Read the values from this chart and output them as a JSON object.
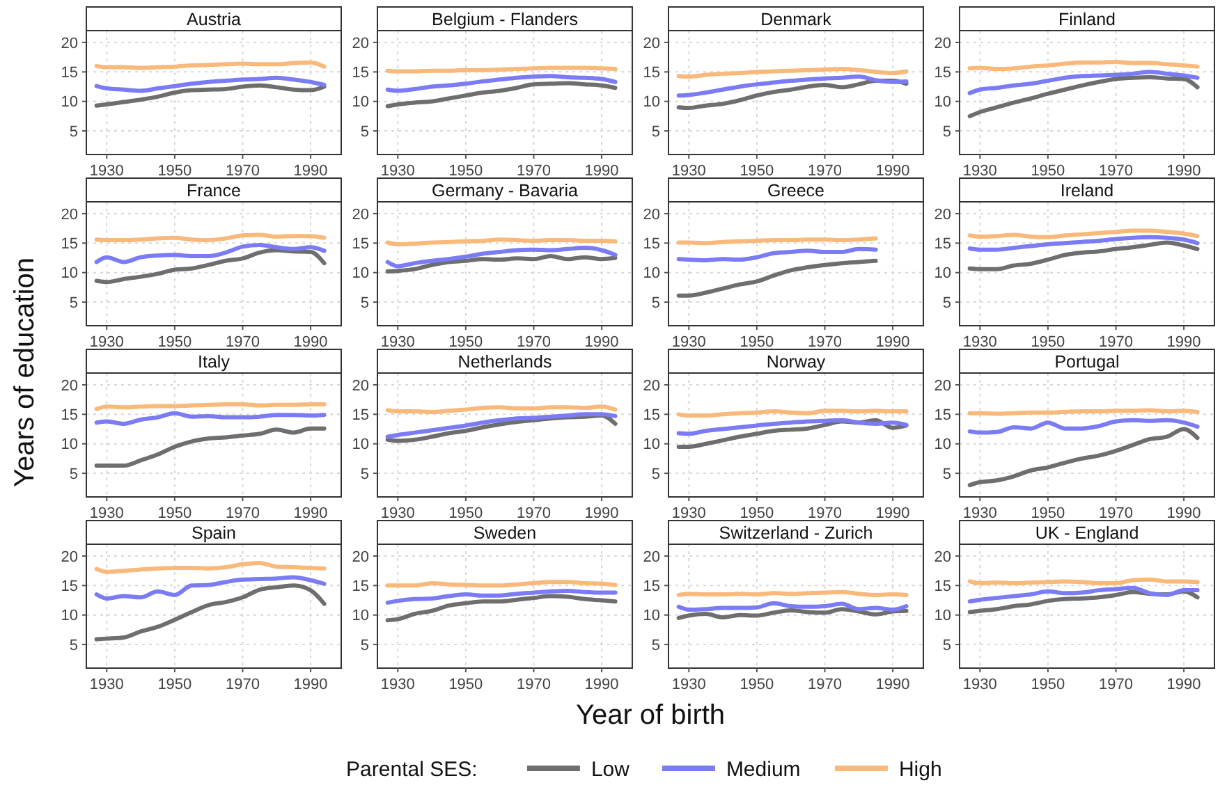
{
  "chart_data": [
    {
      "type": "line",
      "title": "Austria",
      "grid": true,
      "xlim": [
        1924,
        1999
      ],
      "ylim": [
        1,
        22
      ],
      "xticks": [
        1930,
        1950,
        1970,
        1990
      ],
      "yticks": [
        5,
        10,
        15,
        20
      ],
      "x": [
        1927,
        1930,
        1935,
        1940,
        1945,
        1950,
        1955,
        1960,
        1965,
        1970,
        1975,
        1980,
        1985,
        1990,
        1994
      ],
      "series": [
        {
          "color": "#6e6e6e",
          "values": [
            9.3,
            9.5,
            9.9,
            10.3,
            10.8,
            11.5,
            11.9,
            12.0,
            12.1,
            12.5,
            12.7,
            12.4,
            12.0,
            11.9,
            12.5
          ]
        },
        {
          "color": "#7b7bf5",
          "values": [
            12.6,
            12.2,
            12.0,
            11.8,
            12.2,
            12.6,
            13.0,
            13.3,
            13.5,
            13.7,
            13.8,
            14.0,
            13.7,
            13.3,
            12.8
          ]
        },
        {
          "color": "#f8b97a",
          "values": [
            16.0,
            15.8,
            15.8,
            15.7,
            15.8,
            15.9,
            16.1,
            16.2,
            16.3,
            16.4,
            16.3,
            16.3,
            16.5,
            16.6,
            15.9
          ]
        }
      ]
    },
    {
      "type": "line",
      "title": "Belgium - Flanders",
      "grid": true,
      "xlim": [
        1924,
        1999
      ],
      "ylim": [
        1,
        22
      ],
      "xticks": [
        1930,
        1950,
        1970,
        1990
      ],
      "yticks": [
        5,
        10,
        15,
        20
      ],
      "x": [
        1927,
        1930,
        1935,
        1940,
        1945,
        1950,
        1955,
        1960,
        1965,
        1970,
        1975,
        1980,
        1985,
        1990,
        1994
      ],
      "series": [
        {
          "color": "#6e6e6e",
          "values": [
            9.2,
            9.5,
            9.8,
            10.0,
            10.5,
            11.0,
            11.5,
            11.8,
            12.3,
            12.9,
            13.0,
            13.1,
            12.9,
            12.7,
            12.3
          ]
        },
        {
          "color": "#7b7bf5",
          "values": [
            12.0,
            11.8,
            12.1,
            12.5,
            12.7,
            13.0,
            13.4,
            13.7,
            14.0,
            14.2,
            14.3,
            14.1,
            14.0,
            13.8,
            13.3
          ]
        },
        {
          "color": "#f8b97a",
          "values": [
            15.2,
            15.1,
            15.1,
            15.2,
            15.2,
            15.3,
            15.3,
            15.4,
            15.5,
            15.6,
            15.7,
            15.7,
            15.7,
            15.6,
            15.5
          ]
        }
      ]
    },
    {
      "type": "line",
      "title": "Denmark",
      "grid": true,
      "xlim": [
        1924,
        1999
      ],
      "ylim": [
        1,
        22
      ],
      "xticks": [
        1930,
        1950,
        1970,
        1990
      ],
      "yticks": [
        5,
        10,
        15,
        20
      ],
      "x": [
        1927,
        1930,
        1935,
        1940,
        1945,
        1950,
        1955,
        1960,
        1965,
        1970,
        1975,
        1980,
        1985,
        1990,
        1994
      ],
      "series": [
        {
          "color": "#6e6e6e",
          "values": [
            9.0,
            8.9,
            9.3,
            9.6,
            10.2,
            11.0,
            11.6,
            12.0,
            12.5,
            12.8,
            12.4,
            12.9,
            13.5,
            13.5,
            13.0
          ]
        },
        {
          "color": "#7b7bf5",
          "values": [
            11.0,
            11.1,
            11.5,
            12.0,
            12.5,
            12.9,
            13.2,
            13.5,
            13.7,
            13.9,
            14.0,
            14.2,
            13.6,
            13.3,
            13.4
          ]
        },
        {
          "color": "#f8b97a",
          "values": [
            14.3,
            14.2,
            14.5,
            14.7,
            14.8,
            15.0,
            15.1,
            15.2,
            15.3,
            15.4,
            15.5,
            15.3,
            15.0,
            14.8,
            15.1
          ]
        }
      ]
    },
    {
      "type": "line",
      "title": "Finland",
      "grid": true,
      "xlim": [
        1924,
        1999
      ],
      "ylim": [
        1,
        22
      ],
      "xticks": [
        1930,
        1950,
        1970,
        1990
      ],
      "yticks": [
        5,
        10,
        15,
        20
      ],
      "x": [
        1927,
        1930,
        1935,
        1940,
        1945,
        1950,
        1955,
        1960,
        1965,
        1970,
        1975,
        1980,
        1985,
        1990,
        1994
      ],
      "series": [
        {
          "color": "#6e6e6e",
          "values": [
            7.5,
            8.2,
            9.0,
            9.8,
            10.5,
            11.3,
            12.0,
            12.7,
            13.3,
            13.8,
            14.0,
            14.1,
            13.9,
            13.8,
            12.4
          ]
        },
        {
          "color": "#7b7bf5",
          "values": [
            11.4,
            12.0,
            12.3,
            12.7,
            13.0,
            13.5,
            14.0,
            14.3,
            14.4,
            14.5,
            14.7,
            15.0,
            14.7,
            14.4,
            14.0
          ]
        },
        {
          "color": "#f8b97a",
          "values": [
            15.6,
            15.7,
            15.5,
            15.6,
            15.9,
            16.1,
            16.4,
            16.6,
            16.6,
            16.7,
            16.5,
            16.5,
            16.3,
            16.1,
            15.9
          ]
        }
      ]
    },
    {
      "type": "line",
      "title": "France",
      "grid": true,
      "xlim": [
        1924,
        1999
      ],
      "ylim": [
        1,
        22
      ],
      "xticks": [
        1930,
        1950,
        1970,
        1990
      ],
      "yticks": [
        5,
        10,
        15,
        20
      ],
      "x": [
        1927,
        1930,
        1935,
        1940,
        1945,
        1950,
        1955,
        1960,
        1965,
        1970,
        1975,
        1980,
        1985,
        1990,
        1994
      ],
      "series": [
        {
          "color": "#6e6e6e",
          "values": [
            8.6,
            8.4,
            8.9,
            9.3,
            9.8,
            10.5,
            10.7,
            11.3,
            12.0,
            12.4,
            13.4,
            13.8,
            13.6,
            13.5,
            11.6
          ]
        },
        {
          "color": "#7b7bf5",
          "values": [
            11.8,
            12.6,
            11.8,
            12.6,
            12.9,
            13.0,
            12.8,
            12.8,
            13.4,
            14.4,
            14.7,
            14.3,
            14.0,
            14.3,
            13.7
          ]
        },
        {
          "color": "#f8b97a",
          "values": [
            15.6,
            15.5,
            15.5,
            15.6,
            15.8,
            15.9,
            15.6,
            15.5,
            15.8,
            16.3,
            16.4,
            16.1,
            16.2,
            16.2,
            15.9
          ]
        }
      ]
    },
    {
      "type": "line",
      "title": "Germany - Bavaria",
      "grid": true,
      "xlim": [
        1924,
        1999
      ],
      "ylim": [
        1,
        22
      ],
      "xticks": [
        1930,
        1950,
        1970,
        1990
      ],
      "yticks": [
        5,
        10,
        15,
        20
      ],
      "x": [
        1927,
        1930,
        1935,
        1940,
        1945,
        1950,
        1955,
        1960,
        1965,
        1970,
        1975,
        1980,
        1985,
        1990,
        1994
      ],
      "series": [
        {
          "color": "#6e6e6e",
          "values": [
            10.2,
            10.3,
            10.6,
            11.3,
            11.8,
            12.0,
            12.3,
            12.2,
            12.4,
            12.3,
            12.8,
            12.3,
            12.6,
            12.3,
            12.5
          ]
        },
        {
          "color": "#7b7bf5",
          "values": [
            11.8,
            11.1,
            11.6,
            12.0,
            12.3,
            12.7,
            13.2,
            13.5,
            13.8,
            13.9,
            13.8,
            14.0,
            14.2,
            13.8,
            13.0
          ]
        },
        {
          "color": "#f8b97a",
          "values": [
            15.1,
            14.8,
            14.9,
            15.1,
            15.2,
            15.3,
            15.4,
            15.6,
            15.5,
            15.4,
            15.5,
            15.5,
            15.4,
            15.4,
            15.3
          ]
        }
      ]
    },
    {
      "type": "line",
      "title": "Greece",
      "grid": true,
      "xlim": [
        1924,
        1999
      ],
      "ylim": [
        1,
        22
      ],
      "xticks": [
        1930,
        1950,
        1970,
        1990
      ],
      "yticks": [
        5,
        10,
        15,
        20
      ],
      "x": [
        1927,
        1930,
        1935,
        1940,
        1945,
        1950,
        1955,
        1960,
        1965,
        1970,
        1975,
        1980,
        1985
      ],
      "series": [
        {
          "color": "#6e6e6e",
          "values": [
            6.1,
            6.1,
            6.6,
            7.3,
            8.0,
            8.5,
            9.5,
            10.4,
            10.9,
            11.3,
            11.6,
            11.8,
            12.0
          ]
        },
        {
          "color": "#7b7bf5",
          "values": [
            12.3,
            12.2,
            12.1,
            12.3,
            12.2,
            12.6,
            13.3,
            13.5,
            13.7,
            13.5,
            13.5,
            14.0,
            13.9
          ]
        },
        {
          "color": "#f8b97a",
          "values": [
            15.1,
            15.1,
            15.0,
            15.2,
            15.3,
            15.4,
            15.5,
            15.5,
            15.6,
            15.6,
            15.5,
            15.6,
            15.8
          ]
        }
      ]
    },
    {
      "type": "line",
      "title": "Ireland",
      "grid": true,
      "xlim": [
        1924,
        1999
      ],
      "ylim": [
        1,
        22
      ],
      "xticks": [
        1930,
        1950,
        1970,
        1990
      ],
      "yticks": [
        5,
        10,
        15,
        20
      ],
      "x": [
        1927,
        1930,
        1935,
        1940,
        1945,
        1950,
        1955,
        1960,
        1965,
        1970,
        1975,
        1980,
        1985,
        1990,
        1994
      ],
      "series": [
        {
          "color": "#6e6e6e",
          "values": [
            10.7,
            10.6,
            10.6,
            11.2,
            11.5,
            12.2,
            13.0,
            13.4,
            13.6,
            14.0,
            14.3,
            14.7,
            15.1,
            14.6,
            14.0
          ]
        },
        {
          "color": "#7b7bf5",
          "values": [
            14.1,
            13.9,
            13.9,
            14.2,
            14.5,
            14.8,
            15.0,
            15.2,
            15.4,
            15.7,
            15.9,
            16.0,
            15.9,
            15.6,
            15.0
          ]
        },
        {
          "color": "#f8b97a",
          "values": [
            16.3,
            16.1,
            16.2,
            16.4,
            16.1,
            16.0,
            16.3,
            16.5,
            16.7,
            16.9,
            17.1,
            17.1,
            16.9,
            16.6,
            16.2
          ]
        }
      ]
    },
    {
      "type": "line",
      "title": "Italy",
      "ylabel": "Years of education",
      "grid": true,
      "xlim": [
        1924,
        1999
      ],
      "ylim": [
        1,
        22
      ],
      "xticks": [
        1930,
        1950,
        1970,
        1990
      ],
      "yticks": [
        5,
        10,
        15,
        20
      ],
      "x": [
        1927,
        1930,
        1935,
        1940,
        1945,
        1950,
        1955,
        1960,
        1965,
        1970,
        1975,
        1980,
        1985,
        1990,
        1994
      ],
      "series": [
        {
          "color": "#6e6e6e",
          "values": [
            6.3,
            6.3,
            6.3,
            7.2,
            8.2,
            9.5,
            10.4,
            10.9,
            11.1,
            11.4,
            11.7,
            12.4,
            11.9,
            12.6,
            12.6
          ]
        },
        {
          "color": "#7b7bf5",
          "values": [
            13.6,
            13.8,
            13.4,
            14.1,
            14.5,
            15.2,
            14.6,
            14.7,
            14.5,
            14.5,
            14.6,
            14.9,
            14.9,
            14.8,
            14.9
          ]
        },
        {
          "color": "#f8b97a",
          "values": [
            15.9,
            16.3,
            16.2,
            16.3,
            16.4,
            16.4,
            16.5,
            16.6,
            16.7,
            16.7,
            16.5,
            16.6,
            16.6,
            16.7,
            16.7
          ]
        }
      ]
    },
    {
      "type": "line",
      "title": "Netherlands",
      "grid": true,
      "xlim": [
        1924,
        1999
      ],
      "ylim": [
        1,
        22
      ],
      "xticks": [
        1930,
        1950,
        1970,
        1990
      ],
      "yticks": [
        5,
        10,
        15,
        20
      ],
      "x": [
        1927,
        1930,
        1935,
        1940,
        1945,
        1950,
        1955,
        1960,
        1965,
        1970,
        1975,
        1980,
        1985,
        1990,
        1994
      ],
      "series": [
        {
          "color": "#6e6e6e",
          "values": [
            10.7,
            10.5,
            10.7,
            11.2,
            11.8,
            12.2,
            12.8,
            13.3,
            13.7,
            14.0,
            14.3,
            14.5,
            14.6,
            14.8,
            13.4
          ]
        },
        {
          "color": "#7b7bf5",
          "values": [
            11.2,
            11.5,
            11.9,
            12.3,
            12.7,
            13.1,
            13.6,
            14.0,
            14.3,
            14.4,
            14.6,
            14.8,
            15.0,
            15.0,
            14.7
          ]
        },
        {
          "color": "#f8b97a",
          "values": [
            15.7,
            15.5,
            15.5,
            15.4,
            15.6,
            15.8,
            16.1,
            16.2,
            16.0,
            16.0,
            16.2,
            16.2,
            16.1,
            16.3,
            15.8
          ]
        }
      ]
    },
    {
      "type": "line",
      "title": "Norway",
      "grid": true,
      "xlim": [
        1924,
        1999
      ],
      "ylim": [
        1,
        22
      ],
      "xticks": [
        1930,
        1950,
        1970,
        1990
      ],
      "yticks": [
        5,
        10,
        15,
        20
      ],
      "x": [
        1927,
        1930,
        1935,
        1940,
        1945,
        1950,
        1955,
        1960,
        1965,
        1970,
        1975,
        1980,
        1985,
        1990,
        1994
      ],
      "series": [
        {
          "color": "#6e6e6e",
          "values": [
            9.5,
            9.5,
            10.0,
            10.6,
            11.2,
            11.7,
            12.2,
            12.4,
            12.6,
            13.2,
            13.8,
            13.6,
            14.0,
            12.7,
            13.1
          ]
        },
        {
          "color": "#7b7bf5",
          "values": [
            11.8,
            11.7,
            12.2,
            12.5,
            12.8,
            13.1,
            13.4,
            13.6,
            13.8,
            13.9,
            14.0,
            13.6,
            13.4,
            13.6,
            13.2
          ]
        },
        {
          "color": "#f8b97a",
          "values": [
            15.0,
            14.8,
            14.8,
            15.0,
            15.2,
            15.3,
            15.5,
            15.3,
            15.2,
            15.6,
            15.6,
            15.5,
            15.6,
            15.5,
            15.5
          ]
        }
      ]
    },
    {
      "type": "line",
      "title": "Portugal",
      "grid": true,
      "xlim": [
        1924,
        1999
      ],
      "ylim": [
        1,
        22
      ],
      "xticks": [
        1930,
        1950,
        1970,
        1990
      ],
      "yticks": [
        5,
        10,
        15,
        20
      ],
      "x": [
        1927,
        1930,
        1935,
        1940,
        1945,
        1950,
        1955,
        1960,
        1965,
        1970,
        1975,
        1980,
        1985,
        1990,
        1994
      ],
      "series": [
        {
          "color": "#6e6e6e",
          "values": [
            3.0,
            3.5,
            3.8,
            4.5,
            5.5,
            6.0,
            6.8,
            7.5,
            8.0,
            8.8,
            9.8,
            10.8,
            11.2,
            12.5,
            11.0
          ]
        },
        {
          "color": "#7b7bf5",
          "values": [
            12.1,
            11.9,
            12.0,
            12.8,
            12.6,
            13.6,
            12.6,
            12.6,
            13.0,
            13.8,
            14.0,
            13.9,
            14.0,
            13.6,
            12.9
          ]
        },
        {
          "color": "#f8b97a",
          "values": [
            15.2,
            15.2,
            15.1,
            15.2,
            15.3,
            15.3,
            15.4,
            15.5,
            15.5,
            15.6,
            15.6,
            15.7,
            15.5,
            15.6,
            15.4
          ]
        }
      ]
    },
    {
      "type": "line",
      "title": "Spain",
      "grid": true,
      "xlim": [
        1924,
        1999
      ],
      "ylim": [
        1,
        22
      ],
      "xticks": [
        1930,
        1950,
        1970,
        1990
      ],
      "yticks": [
        5,
        10,
        15,
        20
      ],
      "x": [
        1927,
        1930,
        1935,
        1940,
        1945,
        1950,
        1955,
        1960,
        1965,
        1970,
        1975,
        1980,
        1985,
        1990,
        1994
      ],
      "series": [
        {
          "color": "#6e6e6e",
          "values": [
            5.9,
            6.0,
            6.2,
            7.2,
            8.0,
            9.2,
            10.5,
            11.7,
            12.2,
            13.0,
            14.3,
            14.7,
            15.0,
            14.2,
            11.9
          ]
        },
        {
          "color": "#7b7bf5",
          "values": [
            13.5,
            12.8,
            13.2,
            13.0,
            14.0,
            13.4,
            15.0,
            15.1,
            15.6,
            16.0,
            16.1,
            16.2,
            16.4,
            15.9,
            15.3
          ]
        },
        {
          "color": "#f8b97a",
          "values": [
            17.8,
            17.3,
            17.5,
            17.7,
            17.9,
            18.0,
            18.0,
            17.9,
            18.1,
            18.6,
            18.8,
            18.2,
            18.1,
            18.0,
            17.9
          ]
        }
      ]
    },
    {
      "type": "line",
      "title": "Sweden",
      "xlabel": "Year of birth",
      "legend_title": "Parental SES:",
      "legend": "bottom",
      "grid": true,
      "xlim": [
        1924,
        1999
      ],
      "ylim": [
        1,
        22
      ],
      "xticks": [
        1930,
        1950,
        1970,
        1990
      ],
      "yticks": [
        5,
        10,
        15,
        20
      ],
      "x": [
        1927,
        1930,
        1935,
        1940,
        1945,
        1950,
        1955,
        1960,
        1965,
        1970,
        1975,
        1980,
        1985,
        1990,
        1994
      ],
      "series": [
        {
          "name": "Low",
          "color": "#6e6e6e",
          "values": [
            9.1,
            9.3,
            10.2,
            10.7,
            11.6,
            12.0,
            12.3,
            12.3,
            12.6,
            12.9,
            13.2,
            13.1,
            12.7,
            12.5,
            12.3
          ]
        },
        {
          "name": "Medium",
          "color": "#7b7bf5",
          "values": [
            12.1,
            12.4,
            12.7,
            12.8,
            13.2,
            13.5,
            13.3,
            13.3,
            13.6,
            13.8,
            14.0,
            14.1,
            13.9,
            13.8,
            13.8
          ]
        },
        {
          "name": "High",
          "color": "#f8b97a",
          "values": [
            15.0,
            15.0,
            15.0,
            15.4,
            15.2,
            15.1,
            15.0,
            15.0,
            15.2,
            15.4,
            15.6,
            15.6,
            15.4,
            15.3,
            15.1
          ]
        }
      ]
    },
    {
      "type": "line",
      "title": "Switzerland - Zurich",
      "grid": true,
      "xlim": [
        1924,
        1999
      ],
      "ylim": [
        1,
        22
      ],
      "xticks": [
        1930,
        1950,
        1970,
        1990
      ],
      "yticks": [
        5,
        10,
        15,
        20
      ],
      "x": [
        1927,
        1930,
        1935,
        1940,
        1945,
        1950,
        1955,
        1960,
        1965,
        1970,
        1975,
        1980,
        1985,
        1990,
        1994
      ],
      "series": [
        {
          "color": "#6e6e6e",
          "values": [
            9.5,
            9.9,
            10.2,
            9.6,
            10.0,
            9.9,
            10.4,
            10.8,
            10.5,
            10.4,
            11.0,
            10.6,
            10.1,
            10.6,
            10.7
          ]
        },
        {
          "color": "#7b7bf5",
          "values": [
            11.4,
            10.9,
            11.0,
            11.2,
            11.2,
            11.3,
            12.0,
            11.5,
            11.4,
            11.5,
            11.9,
            11.0,
            11.2,
            10.9,
            11.5
          ]
        },
        {
          "color": "#f8b97a",
          "values": [
            13.4,
            13.6,
            13.5,
            13.5,
            13.6,
            13.5,
            13.7,
            13.6,
            13.7,
            13.8,
            13.9,
            13.6,
            13.4,
            13.5,
            13.4
          ]
        }
      ]
    },
    {
      "type": "line",
      "title": "UK - England",
      "grid": true,
      "xlim": [
        1924,
        1999
      ],
      "ylim": [
        1,
        22
      ],
      "xticks": [
        1930,
        1950,
        1970,
        1990
      ],
      "yticks": [
        5,
        10,
        15,
        20
      ],
      "x": [
        1927,
        1930,
        1935,
        1940,
        1945,
        1950,
        1955,
        1960,
        1965,
        1970,
        1975,
        1980,
        1985,
        1990,
        1994
      ],
      "series": [
        {
          "color": "#6e6e6e",
          "values": [
            10.5,
            10.7,
            11.0,
            11.5,
            11.8,
            12.4,
            12.7,
            12.8,
            13.0,
            13.4,
            13.9,
            13.6,
            13.5,
            14.0,
            13.0
          ]
        },
        {
          "color": "#7b7bf5",
          "values": [
            12.3,
            12.6,
            12.9,
            13.2,
            13.5,
            14.0,
            13.7,
            13.8,
            14.2,
            14.4,
            14.6,
            13.7,
            13.4,
            14.2,
            14.2
          ]
        },
        {
          "color": "#f8b97a",
          "values": [
            15.7,
            15.4,
            15.5,
            15.4,
            15.5,
            15.6,
            15.7,
            15.6,
            15.4,
            15.4,
            15.9,
            16.0,
            15.7,
            15.7,
            15.6
          ]
        }
      ]
    }
  ]
}
